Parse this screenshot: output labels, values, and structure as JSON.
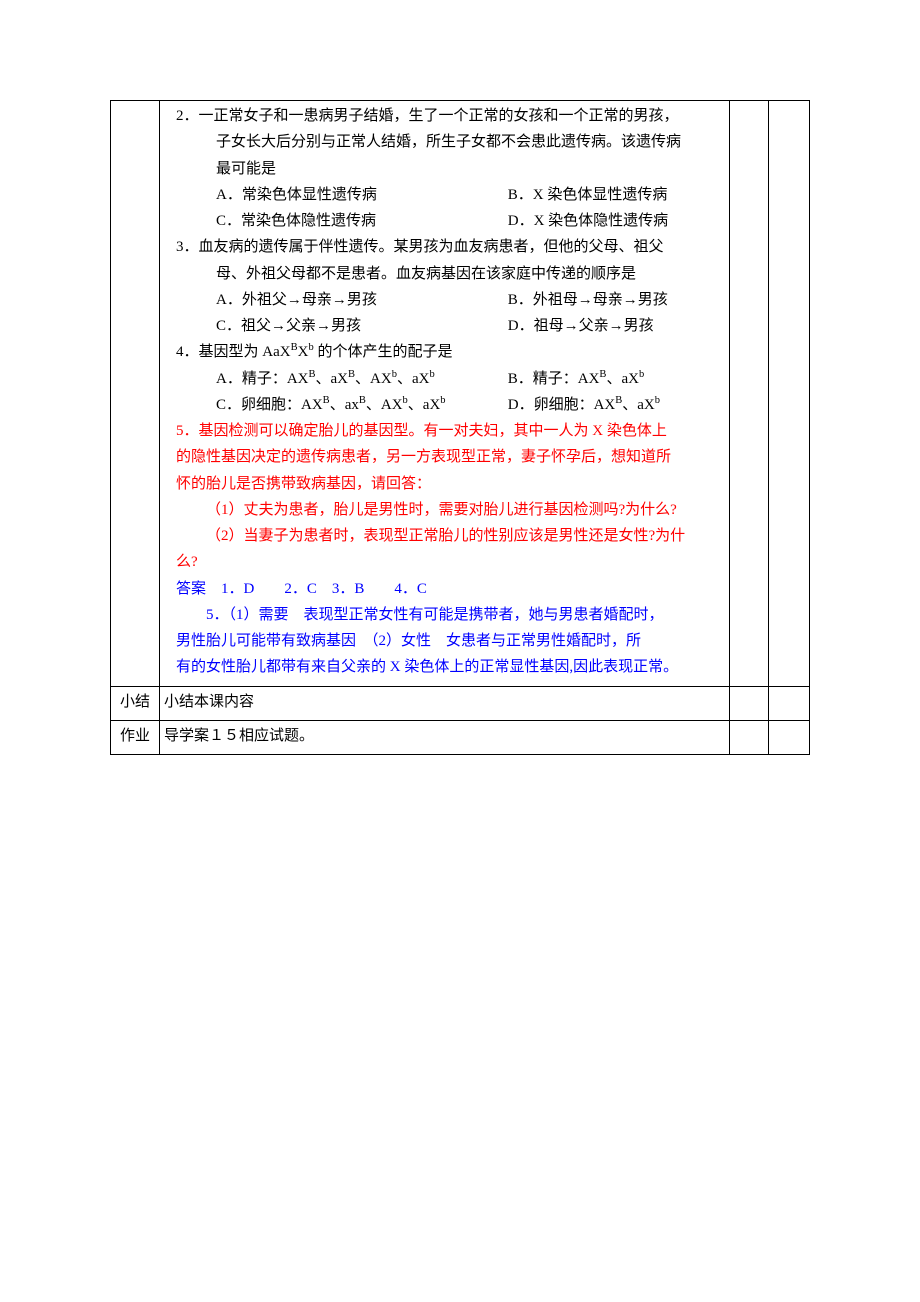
{
  "colors": {
    "text": "#000000",
    "red": "#ff0000",
    "blue": "#0000ff",
    "border": "#000000",
    "background": "#ffffff"
  },
  "typography": {
    "font_family": "SimSun",
    "font_size_pt": 11,
    "line_height": 1.75
  },
  "row1": {
    "q2": {
      "stem_l1": "2．一正常女子和一患病男子结婚，生了一个正常的女孩和一个正常的男孩，",
      "stem_l2": "子女长大后分别与正常人结婚，所生子女都不会患此遗传病。该遗传病",
      "stem_l3": "最可能是",
      "optA": "A．常染色体显性遗传病",
      "optB": "B．X 染色体显性遗传病",
      "optC": "C．常染色体隐性遗传病",
      "optD": "D．X 染色体隐性遗传病"
    },
    "q3": {
      "stem_l1": "3．血友病的遗传属于伴性遗传。某男孩为血友病患者，但他的父母、祖父",
      "stem_l2": "母、外祖父母都不是患者。血友病基因在该家庭中传递的顺序是",
      "optA": "A．外祖父→母亲→男孩",
      "optB": "B．外祖母→母亲→男孩",
      "optC": "C．祖父→父亲→男孩",
      "optD": "D．祖母→父亲→男孩"
    },
    "q4": {
      "stem_pre": "4．基因型为 AaX",
      "sup1": "B",
      "mid1": "X",
      "sup2": "b",
      "stem_post": " 的个体产生的配子是",
      "optA_pre": "A．精子：AX",
      "optA": "、aX",
      "optB_pre": "B．精子：AX",
      "optB": "、aX",
      "optC_pre": "C．卵细胞：AX",
      "optC": "、ax",
      "optD_pre": "D．卵细胞：AX",
      "optD": "、aX",
      "supB": "B",
      "supb": "b"
    },
    "q5": {
      "l1": "5．基因检测可以确定胎儿的基因型。有一对夫妇，其中一人为 X 染色体上",
      "l2": "的隐性基因决定的遗传病患者，另一方表现型正常，妻子怀孕后，想知道所",
      "l3": "怀的胎儿是否携带致病基因，请回答：",
      "l4": "（1）丈夫为患者，胎儿是男性时，需要对胎儿进行基因检测吗?为什么?",
      "l5": "（2）当妻子为患者时，表现型正常胎儿的性别应该是男性还是女性?为什",
      "l6": "么?"
    },
    "ans": {
      "l1": "答案　1．D　　2．C　3．B　　4．C",
      "l2_pre": "5．（1）需要　表现型正常女性有可能是携带者，她与男患者婚配时，",
      "l3": "男性胎儿可能带有致病基因　（2）女性　女患者与正常男性婚配时，所",
      "l4": "有的女性胎儿都带有来自父亲的 X 染色体上的正常显性基因,因此表现正常。"
    }
  },
  "row2": {
    "label": "小结",
    "content": "小结本课内容"
  },
  "row3": {
    "label": "作业",
    "content": "导学案１５相应试题。"
  }
}
